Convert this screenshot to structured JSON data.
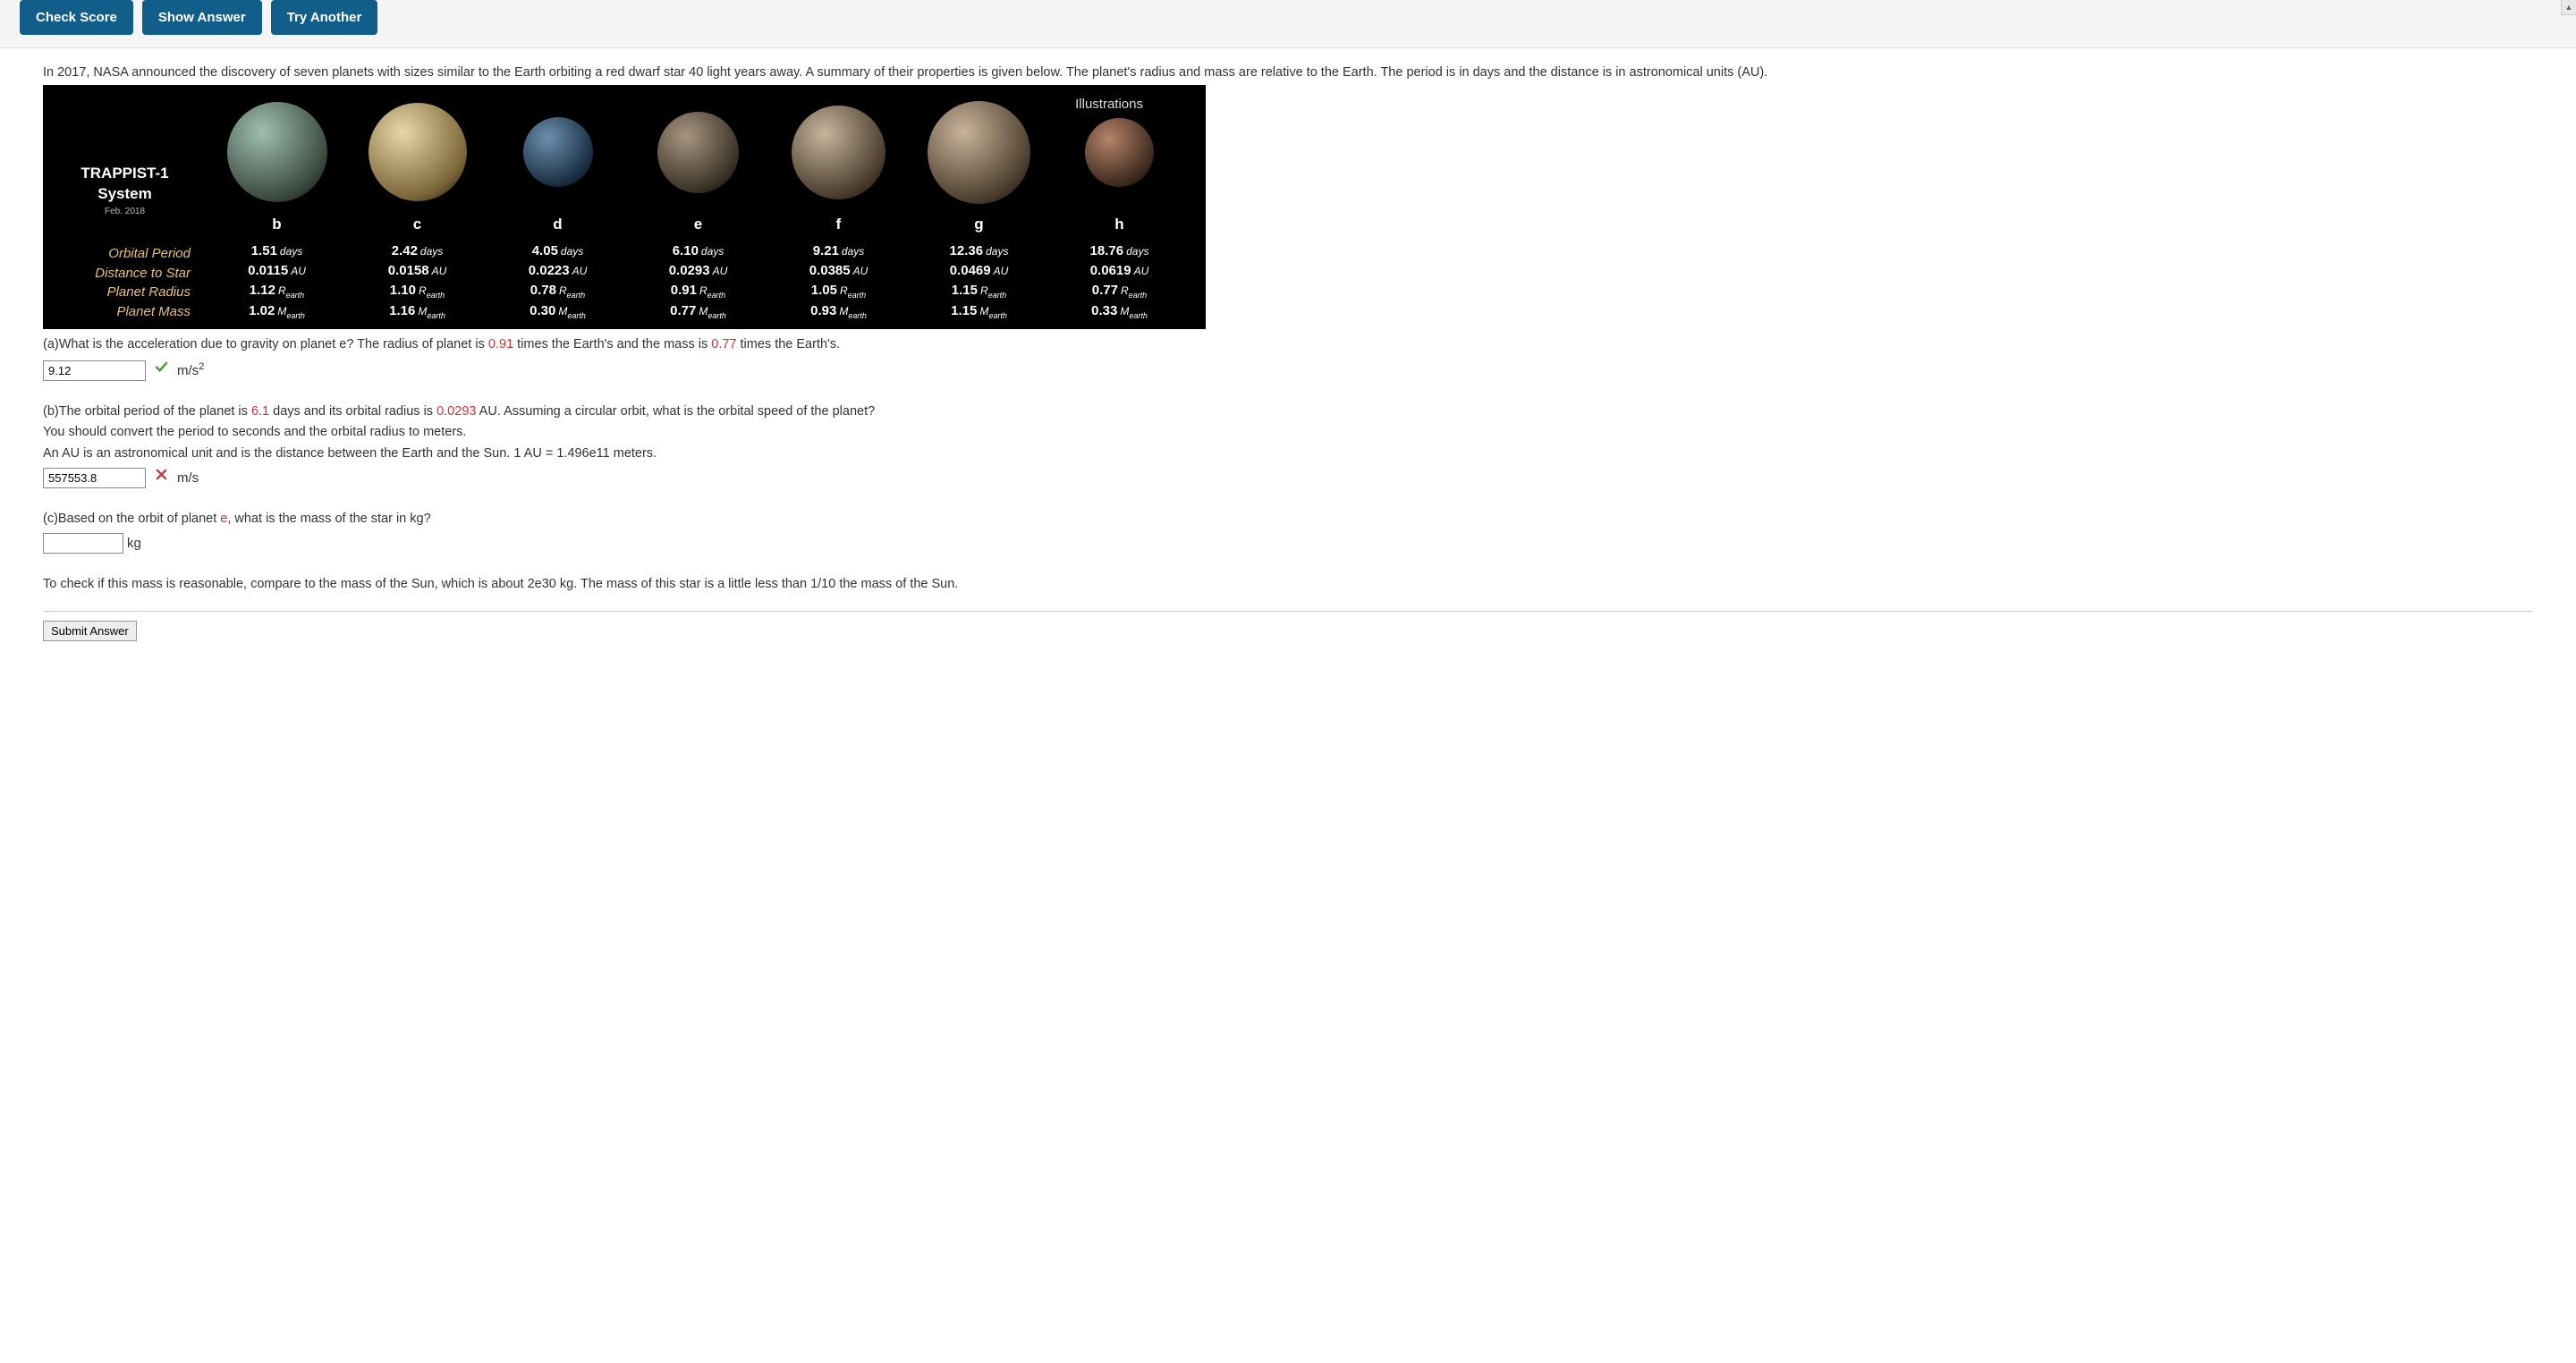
{
  "toolbar": {
    "check": "Check Score",
    "show": "Show Answer",
    "try": "Try Another"
  },
  "intro": "In 2017, NASA announced the discovery of seven planets with sizes similar to the Earth orbiting a red dwarf star 40 light years away. A summary of their properties is given below. The planet's radius and mass are relative to the Earth. The period is in days and the distance is in astronomical units (AU).",
  "illus": {
    "label": "Illustrations",
    "system_line1": "TRAPPIST-1",
    "system_line2": "System",
    "date": "Feb. 2018",
    "rows": {
      "period": "Orbital Period",
      "dist": "Distance to Star",
      "rad": "Planet Radius",
      "mass": "Planet Mass"
    },
    "planets": [
      {
        "id": "b",
        "diam": 112,
        "hi": "#9fbfb0",
        "lo": "#3a4a3e",
        "period": "1.51",
        "dist": "0.0115",
        "rad": "1.12",
        "mass": "1.02"
      },
      {
        "id": "c",
        "diam": 110,
        "hi": "#e8d7a8",
        "lo": "#7a6538",
        "period": "2.42",
        "dist": "0.0158",
        "rad": "1.10",
        "mass": "1.16"
      },
      {
        "id": "d",
        "diam": 78,
        "hi": "#6b8fae",
        "lo": "#1a2f42",
        "period": "4.05",
        "dist": "0.0223",
        "rad": "0.78",
        "mass": "0.30"
      },
      {
        "id": "e",
        "diam": 91,
        "hi": "#a89582",
        "lo": "#3b3327",
        "period": "6.10",
        "dist": "0.0293",
        "rad": "0.91",
        "mass": "0.77"
      },
      {
        "id": "f",
        "diam": 105,
        "hi": "#c7b59c",
        "lo": "#4a3d2e",
        "period": "9.21",
        "dist": "0.0385",
        "rad": "1.05",
        "mass": "0.93"
      },
      {
        "id": "g",
        "diam": 115,
        "hi": "#c9b49b",
        "lo": "#4d3f2f",
        "period": "12.36",
        "dist": "0.0469",
        "rad": "1.15",
        "mass": "1.15"
      },
      {
        "id": "h",
        "diam": 77,
        "hi": "#b5846a",
        "lo": "#3e2a1e",
        "period": "18.76",
        "dist": "0.0619",
        "rad": "0.77",
        "mass": "0.33"
      }
    ],
    "units": {
      "period": "days",
      "dist": "AU",
      "rad_sym": "R",
      "mass_sym": "M",
      "sub": "earth"
    }
  },
  "qa": {
    "pre": "(a)What is the acceleration due to gravity on planet e? The radius of planet is ",
    "r": "0.91",
    "mid": " times the Earth's and the mass is ",
    "m": "0.77",
    "post": " times the Earth's.",
    "val": "9.12",
    "unit": "m/s",
    "correct": true
  },
  "qb": {
    "pre": "(b)The orbital period of the planet is ",
    "p": "6.1",
    "mid": " days and its orbital radius is ",
    "r": "0.0293",
    "post": " AU. Assuming a circular orbit, what is the orbital speed of the planet?",
    "line2": "You should convert the period to seconds and the orbital radius to meters.",
    "line3": "An AU is an astronomical unit and is the distance between the Earth and the Sun. 1 AU = 1.496e11 meters.",
    "val": "557553.8",
    "unit": "m/s",
    "correct": false
  },
  "qc": {
    "pre": "(c)Based on the orbit of planet ",
    "pl": "e",
    "post": ", what is the mass of the star in kg?",
    "val": "",
    "unit": "kg"
  },
  "closing": "To check if this mass is reasonable, compare to the mass of the Sun, which is about 2e30 kg. The mass of this star is a little less than 1/10 the mass of the Sun.",
  "submit": "Submit Answer"
}
